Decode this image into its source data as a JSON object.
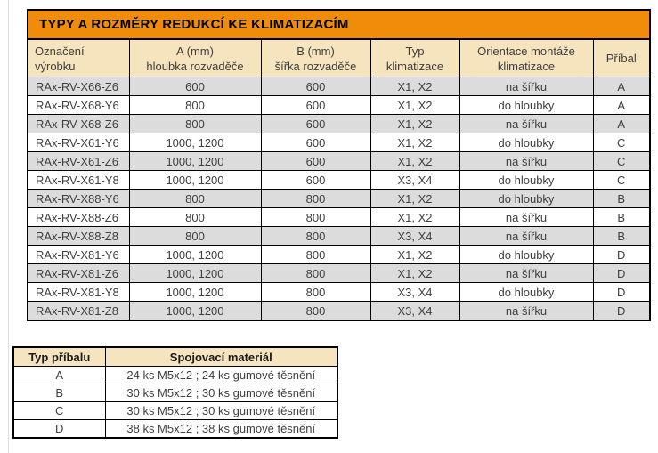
{
  "colors": {
    "title_bar": "#F08C0A",
    "header_fill": "#F5E4BE",
    "row_alt_fill": "#DCDCDC",
    "row_fill": "#FFFFFF",
    "border": "#000000",
    "text": "#3F3F3F"
  },
  "main_table": {
    "title": "TYPY A ROZMĚRY REDUKCÍ KE KLIMATIZACÍM",
    "columns": [
      "Označení\nvýrobku",
      "A (mm)\nhloubka rozvaděče",
      "B (mm)\nšířka rozvaděče",
      "Typ\nklimatizace",
      "Orientace montáže\nklimatizace",
      "Příbal"
    ],
    "rows": [
      [
        "RAx-RV-X66-Z6",
        "600",
        "600",
        "X1, X2",
        "na šířku",
        "A"
      ],
      [
        "RAx-RV-X68-Y6",
        "800",
        "600",
        "X1, X2",
        "do hloubky",
        "A"
      ],
      [
        "RAx-RV-X68-Z6",
        "800",
        "600",
        "X1, X2",
        "na šířku",
        "A"
      ],
      [
        "RAx-RV-X61-Y6",
        "1000, 1200",
        "600",
        "X1, X2",
        "do hloubky",
        "C"
      ],
      [
        "RAx-RV-X61-Z6",
        "1000, 1200",
        "600",
        "X1, X2",
        "na šířku",
        "C"
      ],
      [
        "RAx-RV-X61-Y8",
        "1000, 1200",
        "600",
        "X3, X4",
        "do hloubky",
        "C"
      ],
      [
        "RAx-RV-X88-Y6",
        "800",
        "800",
        "X1, X2",
        "do hloubky",
        "B"
      ],
      [
        "RAx-RV-X88-Z6",
        "800",
        "800",
        "X1, X2",
        "na šířku",
        "B"
      ],
      [
        "RAx-RV-X88-Z8",
        "800",
        "800",
        "X3, X4",
        "na šířku",
        "B"
      ],
      [
        "RAx-RV-X81-Y6",
        "1000, 1200",
        "800",
        "X1, X2",
        "do hloubky",
        "D"
      ],
      [
        "RAx-RV-X81-Z6",
        "1000, 1200",
        "800",
        "X1, X2",
        "na šířku",
        "D"
      ],
      [
        "RAx-RV-X81-Y8",
        "1000, 1200",
        "800",
        "X3, X4",
        "do hloubky",
        "D"
      ],
      [
        "RAx-RV-X81-Z8",
        "1000, 1200",
        "800",
        "X3, X4",
        "na šířku",
        "D"
      ]
    ]
  },
  "accessory_table": {
    "columns": [
      "Typ příbalu",
      "Spojovací materiál"
    ],
    "rows": [
      [
        "A",
        "24 ks M5x12 ; 24 ks gumové těsnění"
      ],
      [
        "B",
        "30 ks M5x12 ; 30 ks gumové těsnění"
      ],
      [
        "C",
        "30 ks M5x12 ; 30 ks gumové těsnění"
      ],
      [
        "D",
        "38 ks M5x12 ; 38 ks gumové těsnění"
      ]
    ]
  }
}
